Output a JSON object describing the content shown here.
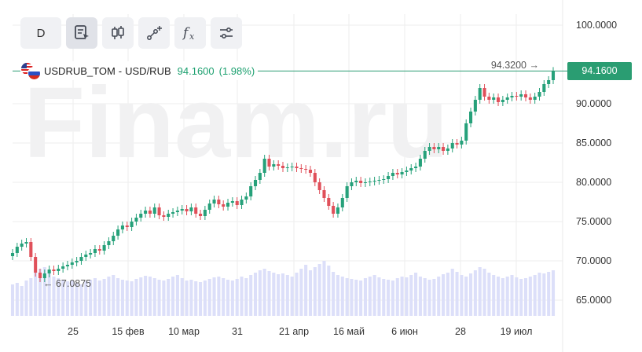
{
  "watermark": "Finam.ru",
  "toolbar": {
    "period_label": "D",
    "buttons": [
      {
        "name": "template-icon"
      },
      {
        "name": "candlestick-icon"
      },
      {
        "name": "draw-line-icon"
      },
      {
        "name": "indicator-fx-icon"
      },
      {
        "name": "settings-sliders-icon"
      }
    ]
  },
  "legend": {
    "symbol": "USDRUB_TOM",
    "separator": "-",
    "pair": "USD/RUB",
    "last": "94.1600",
    "change": "(1.98%)"
  },
  "price_tag": "94.1600",
  "colors": {
    "up": "#26a17a",
    "down": "#e0505a",
    "volume": "#dcdff9",
    "price_line": "#2a9d72",
    "tag_bg": "#2a9d72",
    "grid": "#eeeeee"
  },
  "chart_data": {
    "type": "candlestick",
    "y_axis_labels": [
      "100.0000",
      "90.0000",
      "85.0000",
      "80.0000",
      "75.0000",
      "70.0000",
      "65.0000"
    ],
    "ylim": [
      63,
      102
    ],
    "x_axis_labels": [
      "25",
      "15 фев",
      "10 мар",
      "31",
      "21 апр",
      "16 май",
      "6 июн",
      "28",
      "19 июл"
    ],
    "high_annotation": "94.3200",
    "low_annotation": "67.0875",
    "high_value": 94.32,
    "low_value": 67.0875,
    "current_value": 94.16,
    "close_series": [
      71.0,
      71.8,
      72.2,
      72.4,
      70.5,
      68.5,
      67.8,
      68.4,
      68.9,
      68.7,
      69.0,
      69.3,
      69.5,
      69.8,
      70.0,
      70.5,
      70.8,
      71.0,
      71.5,
      71.3,
      72.0,
      72.5,
      73.2,
      74.0,
      74.5,
      74.3,
      75.0,
      75.5,
      76.0,
      76.4,
      76.0,
      76.8,
      75.8,
      75.6,
      76.0,
      76.2,
      76.4,
      76.6,
      76.3,
      76.8,
      76.0,
      75.7,
      76.5,
      77.3,
      77.8,
      77.2,
      76.9,
      77.4,
      77.6,
      77.1,
      77.8,
      78.2,
      79.5,
      80.3,
      81.2,
      83.0,
      82.0,
      82.3,
      82.1,
      81.8,
      81.9,
      82.0,
      81.8,
      81.7,
      81.6,
      81.2,
      80.0,
      79.0,
      78.0,
      77.0,
      76.0,
      76.8,
      78.0,
      79.5,
      80.0,
      80.2,
      79.9,
      80.0,
      80.1,
      80.2,
      80.3,
      80.4,
      80.8,
      81.2,
      81.0,
      81.3,
      81.5,
      81.8,
      82.0,
      83.0,
      84.0,
      84.5,
      84.2,
      84.5,
      84.0,
      84.3,
      85.0,
      84.8,
      85.3,
      87.5,
      89.0,
      90.5,
      92.0,
      90.9,
      90.5,
      90.8,
      90.2,
      90.5,
      90.8,
      91.0,
      90.9,
      91.2,
      90.8,
      90.5,
      90.9,
      91.5,
      92.5,
      93.0,
      94.16
    ],
    "volume_series": [
      40,
      42,
      38,
      45,
      48,
      55,
      60,
      62,
      58,
      50,
      48,
      46,
      44,
      45,
      42,
      40,
      44,
      46,
      48,
      45,
      47,
      50,
      52,
      48,
      46,
      45,
      44,
      47,
      49,
      51,
      50,
      48,
      46,
      45,
      47,
      50,
      52,
      48,
      45,
      46,
      44,
      43,
      45,
      47,
      49,
      50,
      48,
      46,
      45,
      47,
      50,
      48,
      52,
      55,
      58,
      60,
      57,
      55,
      53,
      54,
      52,
      50,
      55,
      60,
      65,
      58,
      62,
      66,
      70,
      64,
      56,
      52,
      50,
      48,
      47,
      46,
      45,
      48,
      50,
      52,
      49,
      47,
      46,
      45,
      48,
      50,
      49,
      52,
      55,
      50,
      48,
      46,
      47,
      50,
      53,
      55,
      60,
      56,
      52,
      50,
      54,
      58,
      62,
      60,
      55,
      52,
      50,
      48,
      50,
      52,
      49,
      47,
      48,
      50,
      52,
      55,
      54,
      56,
      58
    ]
  }
}
